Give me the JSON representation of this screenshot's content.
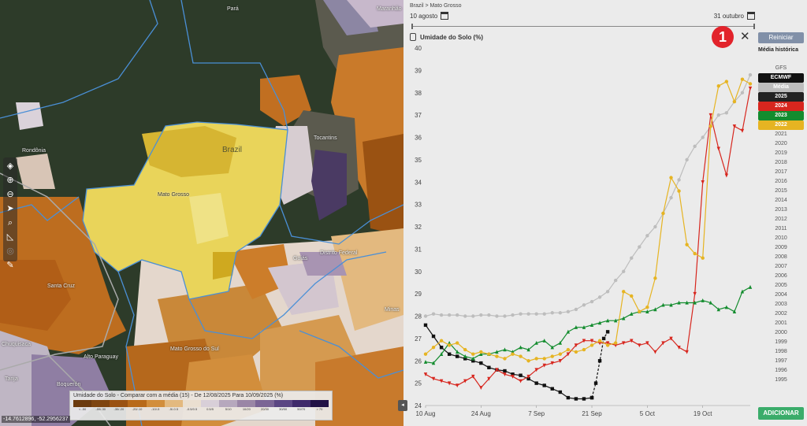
{
  "map": {
    "labels": {
      "para": "Pará",
      "maranhao": "Maranhão",
      "rondonia": "Rondônia",
      "brazil": "Brazil",
      "mato_grosso": "Mato Grosso",
      "tocantins": "Tocantins",
      "santa_cruz": "Santa Cruz",
      "goias": "Goiás",
      "distrito_federal": "Distrito Federal",
      "mato_grosso_do_sul": "Mato Grosso do Sul",
      "alto_paraguay": "Alto Paraguay",
      "boqueron": "Boquerón",
      "tarija": "Tarija",
      "chuquisaca": "Chuquisaca",
      "minas": "Minas"
    },
    "coords": "-14.7612896, -52.2956237",
    "tools": [
      "layers-icon",
      "zoom-in-icon",
      "zoom-out-icon",
      "locate-icon",
      "search-icon",
      "measure-icon",
      "target-icon",
      "draw-icon"
    ],
    "legend": {
      "title": "Umidade do Solo - Comparar com a média (15) - De 12/08/2025 Para 10/09/2025 (%)",
      "colors": [
        "#6b3a0e",
        "#7e4510",
        "#9a5212",
        "#b86a1a",
        "#d28e3c",
        "#e3b97f",
        "#eadfd0",
        "#d8cfd8",
        "#b6a8bd",
        "#9a86a6",
        "#7b6595",
        "#5b4683",
        "#3f2a6b",
        "#221245"
      ],
      "labels": [
        "< -50",
        "-50/-30",
        "-30/-20",
        "-20/-10",
        "-10/-5",
        "-5/-0.5",
        "-0.5/0.5",
        "0.5/5",
        "5/10",
        "10/20",
        "20/30",
        "30/50",
        "50/70",
        "> 70"
      ]
    }
  },
  "panel": {
    "breadcrumb": "Brazil > Mato Grosso",
    "date_start": "10 agosto",
    "date_end": "31 outubro",
    "chart_title": "Umidade do Solo (%)",
    "badge": "1",
    "close": "✕",
    "reset_label": "Reiniciar",
    "hist_label": "Média histórica",
    "add_label": "ADICIONAR",
    "years": [
      {
        "label": "GFS",
        "active": false,
        "color": ""
      },
      {
        "label": "ECMWF",
        "active": true,
        "color": "#111111"
      },
      {
        "label": "Média",
        "active": true,
        "color": "#bdbdbd"
      },
      {
        "label": "2025",
        "active": true,
        "color": "#222222"
      },
      {
        "label": "2024",
        "active": true,
        "color": "#d7261e"
      },
      {
        "label": "2023",
        "active": true,
        "color": "#138c2e"
      },
      {
        "label": "2022",
        "active": true,
        "color": "#e6b422"
      },
      {
        "label": "2021",
        "active": false,
        "color": ""
      },
      {
        "label": "2020",
        "active": false,
        "color": ""
      },
      {
        "label": "2019",
        "active": false,
        "color": ""
      },
      {
        "label": "2018",
        "active": false,
        "color": ""
      },
      {
        "label": "2017",
        "active": false,
        "color": ""
      },
      {
        "label": "2016",
        "active": false,
        "color": ""
      },
      {
        "label": "2015",
        "active": false,
        "color": ""
      },
      {
        "label": "2014",
        "active": false,
        "color": ""
      },
      {
        "label": "2013",
        "active": false,
        "color": ""
      },
      {
        "label": "2012",
        "active": false,
        "color": ""
      },
      {
        "label": "2011",
        "active": false,
        "color": ""
      },
      {
        "label": "2010",
        "active": false,
        "color": ""
      },
      {
        "label": "2009",
        "active": false,
        "color": ""
      },
      {
        "label": "2008",
        "active": false,
        "color": ""
      },
      {
        "label": "2007",
        "active": false,
        "color": ""
      },
      {
        "label": "2006",
        "active": false,
        "color": ""
      },
      {
        "label": "2005",
        "active": false,
        "color": ""
      },
      {
        "label": "2004",
        "active": false,
        "color": ""
      },
      {
        "label": "2003",
        "active": false,
        "color": ""
      },
      {
        "label": "2002",
        "active": false,
        "color": ""
      },
      {
        "label": "2001",
        "active": false,
        "color": ""
      },
      {
        "label": "2000",
        "active": false,
        "color": ""
      },
      {
        "label": "1999",
        "active": false,
        "color": ""
      },
      {
        "label": "1998",
        "active": false,
        "color": ""
      },
      {
        "label": "1997",
        "active": false,
        "color": ""
      },
      {
        "label": "1996",
        "active": false,
        "color": ""
      },
      {
        "label": "1995",
        "active": false,
        "color": ""
      }
    ]
  },
  "chart_data": {
    "type": "line",
    "title": "Umidade do Solo (%)",
    "ylim": [
      24,
      40
    ],
    "yticks": [
      24,
      25,
      26,
      27,
      28,
      29,
      30,
      31,
      32,
      33,
      34,
      35,
      36,
      37,
      38,
      39,
      40
    ],
    "x_start_day": 0,
    "x_end_day": 82,
    "xticks": [
      {
        "label": "10 Aug",
        "day": 0
      },
      {
        "label": "24 Aug",
        "day": 14
      },
      {
        "label": "7 Sep",
        "day": 28
      },
      {
        "label": "21 Sep",
        "day": 42
      },
      {
        "label": "5 Oct",
        "day": 56
      },
      {
        "label": "19 Oct",
        "day": 70
      }
    ],
    "series": [
      {
        "name": "Média",
        "color": "#bdbdbd",
        "marker": "circle",
        "points": [
          [
            0,
            28.0
          ],
          [
            2,
            28.1
          ],
          [
            4,
            28.05
          ],
          [
            6,
            28.05
          ],
          [
            8,
            28.05
          ],
          [
            10,
            28.0
          ],
          [
            12,
            28.0
          ],
          [
            14,
            28.05
          ],
          [
            16,
            28.05
          ],
          [
            18,
            28.0
          ],
          [
            20,
            28.0
          ],
          [
            22,
            28.05
          ],
          [
            24,
            28.1
          ],
          [
            26,
            28.1
          ],
          [
            28,
            28.1
          ],
          [
            30,
            28.1
          ],
          [
            32,
            28.15
          ],
          [
            34,
            28.15
          ],
          [
            36,
            28.2
          ],
          [
            38,
            28.3
          ],
          [
            40,
            28.5
          ],
          [
            42,
            28.65
          ],
          [
            44,
            28.85
          ],
          [
            46,
            29.1
          ],
          [
            48,
            29.6
          ],
          [
            50,
            30.0
          ],
          [
            52,
            30.6
          ],
          [
            54,
            31.1
          ],
          [
            56,
            31.6
          ],
          [
            58,
            32.0
          ],
          [
            60,
            32.6
          ],
          [
            62,
            33.3
          ],
          [
            64,
            34.1
          ],
          [
            66,
            35.0
          ],
          [
            68,
            35.6
          ],
          [
            70,
            36.0
          ],
          [
            72,
            36.5
          ],
          [
            74,
            37.0
          ],
          [
            76,
            37.1
          ],
          [
            78,
            37.6
          ],
          [
            80,
            38.0
          ],
          [
            82,
            38.8
          ]
        ]
      },
      {
        "name": "2025",
        "color": "#111111",
        "marker": "square",
        "points": [
          [
            0,
            27.6
          ],
          [
            2,
            27.1
          ],
          [
            4,
            26.6
          ],
          [
            6,
            26.3
          ],
          [
            8,
            26.2
          ],
          [
            10,
            26.1
          ],
          [
            12,
            26.0
          ],
          [
            14,
            25.9
          ],
          [
            16,
            25.7
          ],
          [
            18,
            25.6
          ],
          [
            20,
            25.55
          ],
          [
            22,
            25.4
          ],
          [
            24,
            25.35
          ],
          [
            26,
            25.2
          ],
          [
            28,
            25.0
          ],
          [
            30,
            24.9
          ],
          [
            32,
            24.75
          ],
          [
            34,
            24.6
          ],
          [
            36,
            24.35
          ],
          [
            38,
            24.3
          ],
          [
            40,
            24.3
          ],
          [
            42,
            24.35
          ]
        ]
      },
      {
        "name": "ECMWF",
        "color": "#111111",
        "marker": "square",
        "dashed": true,
        "points": [
          [
            42,
            24.35
          ],
          [
            43,
            25.0
          ],
          [
            44,
            26.0
          ],
          [
            45,
            27.0
          ],
          [
            46,
            27.3
          ]
        ]
      },
      {
        "name": "2024",
        "color": "#d7261e",
        "marker": "triangle-down",
        "points": [
          [
            0,
            25.4
          ],
          [
            2,
            25.2
          ],
          [
            4,
            25.1
          ],
          [
            6,
            25.0
          ],
          [
            8,
            24.9
          ],
          [
            10,
            25.1
          ],
          [
            12,
            25.3
          ],
          [
            14,
            24.8
          ],
          [
            16,
            25.2
          ],
          [
            18,
            25.6
          ],
          [
            20,
            25.4
          ],
          [
            22,
            25.3
          ],
          [
            24,
            25.1
          ],
          [
            26,
            25.3
          ],
          [
            28,
            25.6
          ],
          [
            30,
            25.8
          ],
          [
            32,
            25.9
          ],
          [
            34,
            26.0
          ],
          [
            36,
            26.3
          ],
          [
            38,
            26.7
          ],
          [
            40,
            26.9
          ],
          [
            42,
            26.9
          ],
          [
            44,
            26.8
          ],
          [
            46,
            26.8
          ],
          [
            48,
            26.7
          ],
          [
            50,
            26.8
          ],
          [
            52,
            26.9
          ],
          [
            54,
            26.7
          ],
          [
            56,
            26.8
          ],
          [
            58,
            26.4
          ],
          [
            60,
            26.8
          ],
          [
            62,
            27.0
          ],
          [
            64,
            26.6
          ],
          [
            66,
            26.4
          ],
          [
            68,
            29.0
          ],
          [
            70,
            34.0
          ],
          [
            72,
            37.0
          ],
          [
            74,
            35.5
          ],
          [
            76,
            34.3
          ],
          [
            78,
            36.5
          ],
          [
            80,
            36.3
          ],
          [
            82,
            38.2
          ]
        ]
      },
      {
        "name": "2023",
        "color": "#138c2e",
        "marker": "triangle-up",
        "points": [
          [
            0,
            25.95
          ],
          [
            2,
            25.9
          ],
          [
            4,
            26.3
          ],
          [
            6,
            26.8
          ],
          [
            8,
            26.4
          ],
          [
            10,
            26.2
          ],
          [
            12,
            26.1
          ],
          [
            14,
            26.3
          ],
          [
            16,
            26.3
          ],
          [
            18,
            26.4
          ],
          [
            20,
            26.5
          ],
          [
            22,
            26.4
          ],
          [
            24,
            26.6
          ],
          [
            26,
            26.5
          ],
          [
            28,
            26.8
          ],
          [
            30,
            26.9
          ],
          [
            32,
            26.6
          ],
          [
            34,
            26.8
          ],
          [
            36,
            27.3
          ],
          [
            38,
            27.5
          ],
          [
            40,
            27.5
          ],
          [
            42,
            27.6
          ],
          [
            44,
            27.7
          ],
          [
            46,
            27.8
          ],
          [
            48,
            27.8
          ],
          [
            50,
            27.9
          ],
          [
            52,
            28.1
          ],
          [
            54,
            28.2
          ],
          [
            56,
            28.2
          ],
          [
            58,
            28.3
          ],
          [
            60,
            28.5
          ],
          [
            62,
            28.5
          ],
          [
            64,
            28.6
          ],
          [
            66,
            28.6
          ],
          [
            68,
            28.6
          ],
          [
            70,
            28.7
          ],
          [
            72,
            28.6
          ],
          [
            74,
            28.3
          ],
          [
            76,
            28.4
          ],
          [
            78,
            28.2
          ],
          [
            80,
            29.1
          ],
          [
            82,
            29.3
          ]
        ]
      },
      {
        "name": "2022",
        "color": "#e6b422",
        "marker": "circle",
        "points": [
          [
            0,
            26.3
          ],
          [
            2,
            26.6
          ],
          [
            4,
            26.9
          ],
          [
            6,
            26.7
          ],
          [
            8,
            26.8
          ],
          [
            10,
            26.5
          ],
          [
            12,
            26.3
          ],
          [
            14,
            26.4
          ],
          [
            16,
            26.3
          ],
          [
            18,
            26.2
          ],
          [
            20,
            26.1
          ],
          [
            22,
            26.3
          ],
          [
            24,
            26.2
          ],
          [
            26,
            26.0
          ],
          [
            28,
            26.1
          ],
          [
            30,
            26.1
          ],
          [
            32,
            26.2
          ],
          [
            34,
            26.3
          ],
          [
            36,
            26.5
          ],
          [
            38,
            26.4
          ],
          [
            40,
            26.5
          ],
          [
            42,
            26.7
          ],
          [
            44,
            26.9
          ],
          [
            46,
            26.7
          ],
          [
            48,
            26.8
          ],
          [
            50,
            29.1
          ],
          [
            52,
            28.9
          ],
          [
            54,
            28.2
          ],
          [
            56,
            28.4
          ],
          [
            58,
            29.7
          ],
          [
            60,
            32.6
          ],
          [
            62,
            34.2
          ],
          [
            64,
            33.6
          ],
          [
            66,
            31.2
          ],
          [
            68,
            30.8
          ],
          [
            70,
            30.6
          ],
          [
            72,
            36.5
          ],
          [
            74,
            38.3
          ],
          [
            76,
            38.5
          ],
          [
            78,
            37.6
          ],
          [
            80,
            38.6
          ],
          [
            82,
            38.4
          ]
        ]
      }
    ]
  }
}
